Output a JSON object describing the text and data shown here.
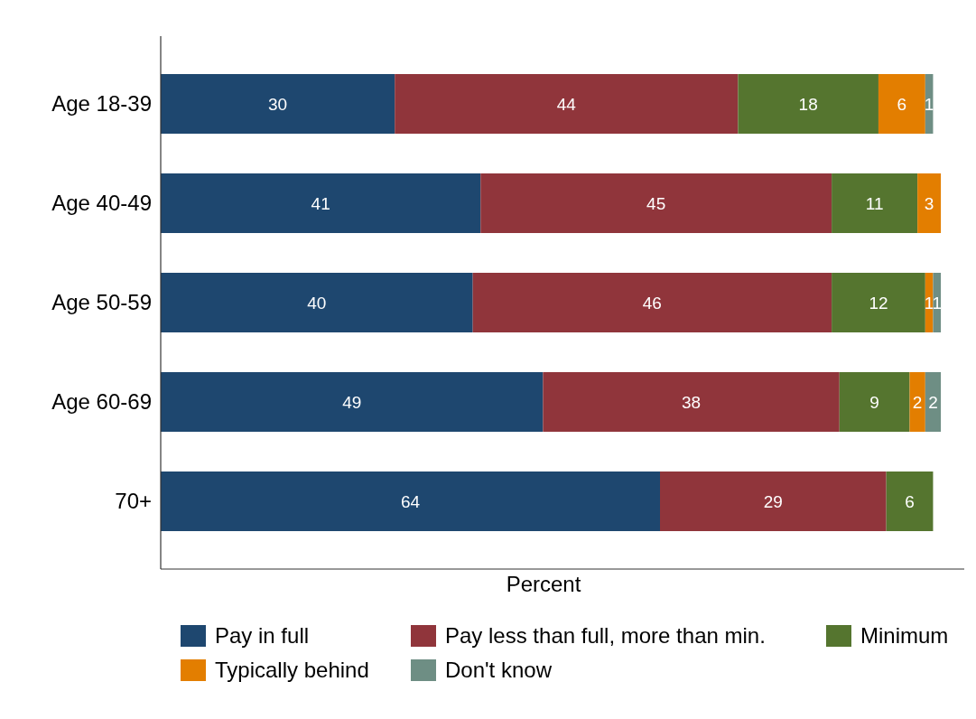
{
  "chart_data": {
    "type": "bar",
    "orientation": "horizontal",
    "stacked": true,
    "xlabel": "Percent",
    "categories": [
      "Age 18-39",
      "Age 40-49",
      "Age 50-59",
      "Age 60-69",
      "70+"
    ],
    "xlim": [
      0,
      103
    ],
    "tick_labels": "y",
    "legend": "bottom",
    "data_labels": true,
    "series": [
      {
        "name": "Pay in full",
        "color": "#1e476f",
        "values": [
          30,
          41,
          40,
          49,
          64
        ]
      },
      {
        "name": "Pay less than full, more than min.",
        "color": "#90353b",
        "values": [
          44,
          45,
          46,
          38,
          29
        ]
      },
      {
        "name": "Minimum",
        "color": "#55752f",
        "values": [
          18,
          11,
          12,
          9,
          6
        ]
      },
      {
        "name": "Typically behind",
        "color": "#e37e00",
        "values": [
          6,
          3,
          1,
          2,
          null
        ]
      },
      {
        "name": "Don't know",
        "color": "#6e8e84",
        "values": [
          1,
          null,
          1,
          2,
          null
        ]
      }
    ]
  }
}
